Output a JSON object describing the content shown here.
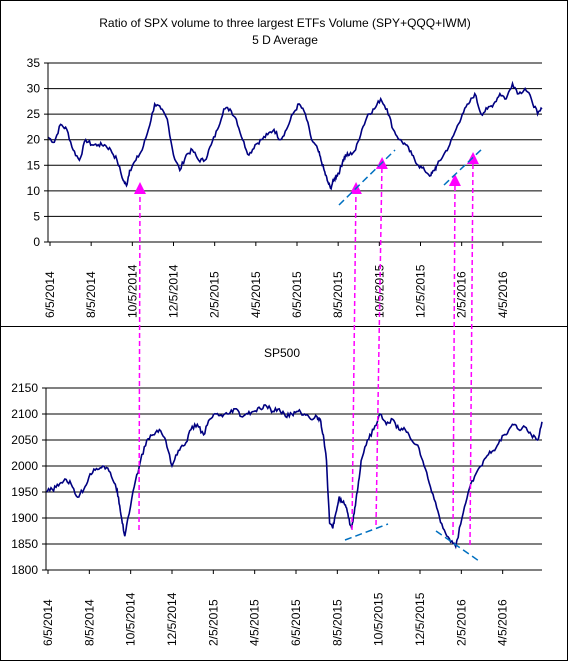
{
  "chart_data": [
    {
      "type": "line",
      "title": "Ratio of SPX volume to three largest ETFs Volume (SPY+QQQ+IWM)",
      "subtitle": "5 D Average",
      "ylim": [
        0,
        35
      ],
      "y_ticks": [
        0,
        5,
        10,
        15,
        20,
        25,
        30,
        35
      ],
      "x_tick_labels": [
        "6/5/2014",
        "8/5/2014",
        "10/5/2014",
        "12/5/2014",
        "2/5/2015",
        "4/5/2015",
        "6/5/2015",
        "8/5/2015",
        "10/5/2015",
        "12/5/2015",
        "2/5/2016",
        "4/5/2016"
      ],
      "grid": "horizontal",
      "line_color": "#000080",
      "series": [
        {
          "values": [
            [
              0,
              20.5
            ],
            [
              10,
              19.5
            ],
            [
              20,
              23
            ],
            [
              30,
              22
            ],
            [
              40,
              18
            ],
            [
              50,
              16
            ],
            [
              60,
              20
            ],
            [
              70,
              19
            ],
            [
              80,
              19
            ],
            [
              90,
              19
            ],
            [
              100,
              18
            ],
            [
              110,
              16
            ],
            [
              120,
              12
            ],
            [
              125,
              11
            ],
            [
              130,
              14
            ],
            [
              140,
              16
            ],
            [
              150,
              18
            ],
            [
              160,
              22
            ],
            [
              170,
              27
            ],
            [
              180,
              26
            ],
            [
              190,
              24
            ],
            [
              200,
              17
            ],
            [
              210,
              14
            ],
            [
              220,
              17
            ],
            [
              230,
              18
            ],
            [
              240,
              16
            ],
            [
              250,
              16
            ],
            [
              260,
              19
            ],
            [
              270,
              22
            ],
            [
              280,
              26
            ],
            [
              290,
              26
            ],
            [
              300,
              24
            ],
            [
              310,
              20
            ],
            [
              320,
              17
            ],
            [
              330,
              19
            ],
            [
              340,
              20
            ],
            [
              350,
              21
            ],
            [
              360,
              22
            ],
            [
              370,
              20
            ],
            [
              380,
              22
            ],
            [
              390,
              25
            ],
            [
              400,
              27
            ],
            [
              410,
              25
            ],
            [
              420,
              20
            ],
            [
              430,
              18
            ],
            [
              435,
              16
            ],
            [
              440,
              14
            ],
            [
              445,
              12
            ],
            [
              450,
              10.5
            ],
            [
              455,
              12
            ],
            [
              460,
              13
            ],
            [
              465,
              14
            ],
            [
              470,
              16
            ],
            [
              475,
              17
            ],
            [
              480,
              17
            ],
            [
              490,
              18
            ],
            [
              500,
              22
            ],
            [
              510,
              25
            ],
            [
              520,
              26
            ],
            [
              530,
              28
            ],
            [
              540,
              26
            ],
            [
              550,
              22
            ],
            [
              560,
              20
            ],
            [
              570,
              19
            ],
            [
              580,
              17
            ],
            [
              590,
              15
            ],
            [
              600,
              14
            ],
            [
              610,
              13
            ],
            [
              615,
              14
            ],
            [
              620,
              15
            ],
            [
              630,
              17
            ],
            [
              640,
              19
            ],
            [
              650,
              22
            ],
            [
              660,
              25
            ],
            [
              670,
              27
            ],
            [
              680,
              29
            ],
            [
              690,
              25
            ],
            [
              700,
              26
            ],
            [
              710,
              27
            ],
            [
              720,
              29
            ],
            [
              730,
              28
            ],
            [
              740,
              31
            ],
            [
              750,
              29
            ],
            [
              760,
              30
            ],
            [
              770,
              28
            ],
            [
              780,
              25
            ],
            [
              787,
              26
            ]
          ]
        }
      ]
    },
    {
      "type": "line",
      "title": "SP500",
      "ylim": [
        1800,
        2150
      ],
      "y_ticks": [
        1800,
        1850,
        1900,
        1950,
        2000,
        2050,
        2100,
        2150
      ],
      "x_tick_labels": [
        "6/5/2014",
        "8/5/2014",
        "10/5/2014",
        "12/5/2014",
        "2/5/2015",
        "4/5/2015",
        "6/5/2015",
        "8/5/2015",
        "10/5/2015",
        "12/5/2015",
        "2/5/2016",
        "4/5/2016"
      ],
      "grid": "horizontal",
      "line_color": "#000080",
      "series": [
        {
          "values": [
            [
              0,
              1950
            ],
            [
              10,
              1955
            ],
            [
              20,
              1962
            ],
            [
              30,
              1975
            ],
            [
              40,
              1965
            ],
            [
              50,
              1940
            ],
            [
              60,
              1955
            ],
            [
              70,
              1985
            ],
            [
              80,
              1995
            ],
            [
              90,
              2000
            ],
            [
              100,
              1990
            ],
            [
              110,
              1965
            ],
            [
              115,
              1940
            ],
            [
              120,
              1900
            ],
            [
              125,
              1865
            ],
            [
              130,
              1900
            ],
            [
              140,
              1960
            ],
            [
              150,
              2010
            ],
            [
              160,
              2050
            ],
            [
              170,
              2060
            ],
            [
              180,
              2070
            ],
            [
              190,
              2050
            ],
            [
              200,
              2000
            ],
            [
              210,
              2030
            ],
            [
              220,
              2040
            ],
            [
              230,
              2070
            ],
            [
              240,
              2080
            ],
            [
              250,
              2060
            ],
            [
              260,
              2090
            ],
            [
              270,
              2100
            ],
            [
              280,
              2095
            ],
            [
              290,
              2100
            ],
            [
              300,
              2110
            ],
            [
              310,
              2095
            ],
            [
              320,
              2100
            ],
            [
              330,
              2105
            ],
            [
              340,
              2110
            ],
            [
              350,
              2115
            ],
            [
              360,
              2105
            ],
            [
              370,
              2110
            ],
            [
              380,
              2095
            ],
            [
              390,
              2100
            ],
            [
              400,
              2105
            ],
            [
              410,
              2100
            ],
            [
              420,
              2090
            ],
            [
              430,
              2095
            ],
            [
              435,
              2090
            ],
            [
              440,
              2060
            ],
            [
              445,
              2010
            ],
            [
              450,
              1890
            ],
            [
              455,
              1880
            ],
            [
              460,
              1910
            ],
            [
              465,
              1940
            ],
            [
              470,
              1930
            ],
            [
              475,
              1925
            ],
            [
              480,
              1900
            ],
            [
              485,
              1880
            ],
            [
              490,
              1920
            ],
            [
              495,
              1960
            ],
            [
              500,
              2010
            ],
            [
              510,
              2050
            ],
            [
              520,
              2070
            ],
            [
              530,
              2100
            ],
            [
              540,
              2080
            ],
            [
              550,
              2090
            ],
            [
              560,
              2070
            ],
            [
              570,
              2070
            ],
            [
              580,
              2050
            ],
            [
              590,
              2040
            ],
            [
              600,
              2000
            ],
            [
              610,
              1960
            ],
            [
              620,
              1920
            ],
            [
              630,
              1880
            ],
            [
              640,
              1860
            ],
            [
              650,
              1845
            ],
            [
              660,
              1900
            ],
            [
              670,
              1950
            ],
            [
              680,
              1980
            ],
            [
              690,
              2000
            ],
            [
              700,
              2020
            ],
            [
              710,
              2030
            ],
            [
              720,
              2050
            ],
            [
              730,
              2060
            ],
            [
              740,
              2080
            ],
            [
              750,
              2070
            ],
            [
              760,
              2075
            ],
            [
              770,
              2060
            ],
            [
              780,
              2050
            ],
            [
              787,
              2085
            ]
          ]
        }
      ]
    }
  ],
  "annotations": {
    "arrow_color": "#ff00ff",
    "trendline_color": "#0070c0"
  }
}
